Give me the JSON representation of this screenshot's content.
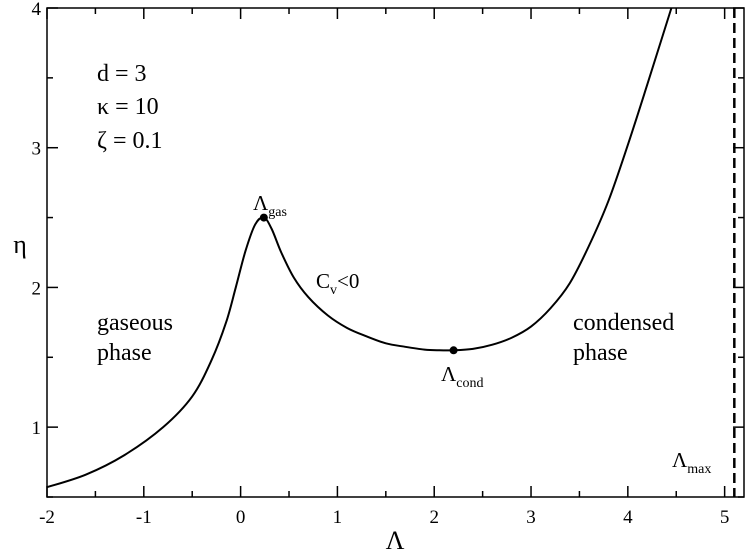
{
  "chart_data": {
    "type": "line",
    "xlabel": "Λ",
    "ylabel": "η",
    "xlim": [
      -2,
      5.2
    ],
    "ylim": [
      0.5,
      4
    ],
    "xticks": [
      "-2",
      "-1",
      "0",
      "1",
      "2",
      "3",
      "4",
      "5"
    ],
    "yticks": [
      "1",
      "2",
      "3",
      "4"
    ],
    "grid": false,
    "series": [
      {
        "style": "solid",
        "x": [
          -2.0,
          -1.6,
          -1.2,
          -0.8,
          -0.5,
          -0.3,
          -0.15,
          -0.05,
          0.05,
          0.15,
          0.24,
          0.32,
          0.42,
          0.55,
          0.7,
          0.9,
          1.1,
          1.3,
          1.5,
          1.7,
          1.9,
          2.05,
          2.2,
          2.4,
          2.6,
          2.8,
          3.0,
          3.2,
          3.4,
          3.6,
          3.8,
          4.0,
          4.2,
          4.35,
          4.45
        ],
        "y": [
          0.57,
          0.66,
          0.8,
          1.0,
          1.22,
          1.48,
          1.75,
          2.0,
          2.26,
          2.45,
          2.5,
          2.42,
          2.25,
          2.07,
          1.93,
          1.8,
          1.71,
          1.65,
          1.6,
          1.575,
          1.555,
          1.55,
          1.55,
          1.56,
          1.59,
          1.64,
          1.72,
          1.85,
          2.03,
          2.3,
          2.62,
          3.02,
          3.45,
          3.78,
          4.0
        ]
      }
    ],
    "vline": {
      "x": 5.1,
      "style": "dashed",
      "label_main": "Λ",
      "label_sub": "max"
    },
    "points": [
      {
        "x": 0.24,
        "y": 2.5,
        "label_main": "Λ",
        "label_sub": "gas"
      },
      {
        "x": 2.2,
        "y": 1.55,
        "label_main": "Λ",
        "label_sub": "cond"
      }
    ],
    "annotations": {
      "params": [
        "d = 3",
        "κ = 10",
        "ζ = 0.1"
      ],
      "cv_main": "C",
      "cv_sub": "v",
      "cv_rest": "<0",
      "gaseous": [
        "gaseous",
        "phase"
      ],
      "condensed": [
        "condensed",
        "phase"
      ]
    }
  }
}
